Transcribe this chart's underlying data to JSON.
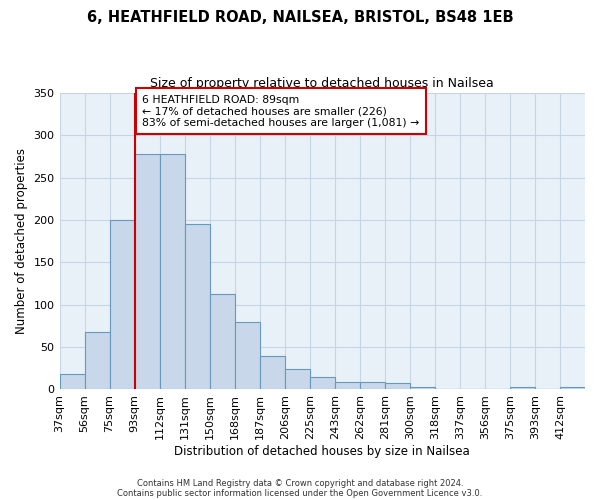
{
  "title": "6, HEATHFIELD ROAD, NAILSEA, BRISTOL, BS48 1EB",
  "subtitle": "Size of property relative to detached houses in Nailsea",
  "xlabel": "Distribution of detached houses by size in Nailsea",
  "ylabel": "Number of detached properties",
  "footer_line1": "Contains HM Land Registry data © Crown copyright and database right 2024.",
  "footer_line2": "Contains public sector information licensed under the Open Government Licence v3.0.",
  "bin_labels": [
    "37sqm",
    "56sqm",
    "75sqm",
    "93sqm",
    "112sqm",
    "131sqm",
    "150sqm",
    "168sqm",
    "187sqm",
    "206sqm",
    "225sqm",
    "243sqm",
    "262sqm",
    "281sqm",
    "300sqm",
    "318sqm",
    "337sqm",
    "356sqm",
    "375sqm",
    "393sqm",
    "412sqm"
  ],
  "bar_values": [
    18,
    68,
    200,
    278,
    278,
    195,
    113,
    79,
    39,
    24,
    14,
    8,
    8,
    7,
    2,
    0,
    0,
    0,
    2,
    0,
    2
  ],
  "bar_color": "#c8d8ea",
  "bar_edge_color": "#6699bb",
  "reference_line_index": 3,
  "reference_line_color": "#cc0000",
  "annotation_line1": "6 HEATHFIELD ROAD: 89sqm",
  "annotation_line2": "← 17% of detached houses are smaller (226)",
  "annotation_line3": "83% of semi-detached houses are larger (1,081) →",
  "annotation_box_facecolor": "#ffffff",
  "annotation_box_edgecolor": "#cc0000",
  "ylim": [
    0,
    350
  ],
  "yticks": [
    0,
    50,
    100,
    150,
    200,
    250,
    300,
    350
  ],
  "background_color": "#ffffff",
  "grid_color": "#c5d5e5",
  "plot_bg_color": "#e8f0f8"
}
